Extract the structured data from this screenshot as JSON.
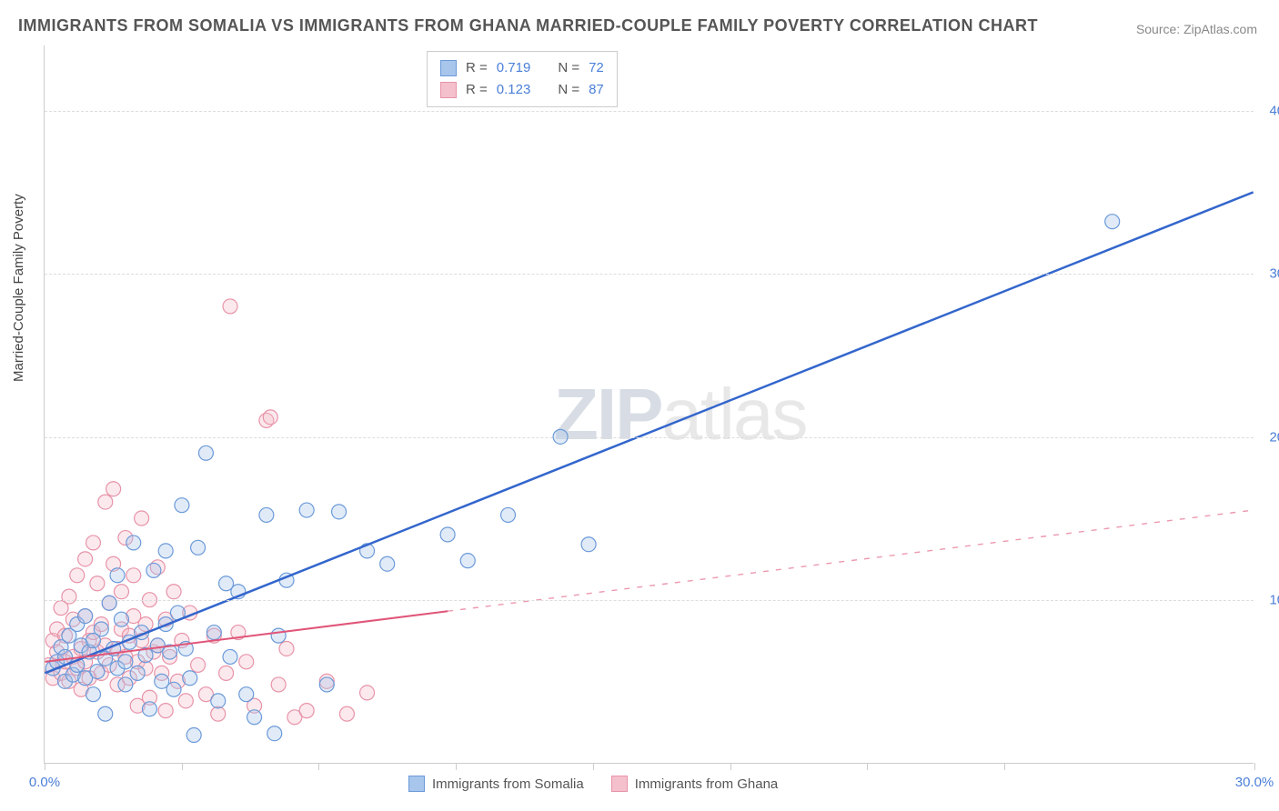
{
  "title": "IMMIGRANTS FROM SOMALIA VS IMMIGRANTS FROM GHANA MARRIED-COUPLE FAMILY POVERTY CORRELATION CHART",
  "source": "Source: ZipAtlas.com",
  "ylabel": "Married-Couple Family Poverty",
  "watermark_a": "ZIP",
  "watermark_b": "atlas",
  "chart": {
    "type": "scatter",
    "xlim": [
      0,
      30
    ],
    "ylim": [
      0,
      44
    ],
    "x_ticks": [
      0,
      3.4,
      6.8,
      10.2,
      13.6,
      17,
      20.4,
      23.8,
      30
    ],
    "x_tick_labels": {
      "0": "0.0%",
      "30": "30.0%"
    },
    "y_gridlines": [
      10,
      20,
      30,
      40
    ],
    "y_tick_labels": {
      "10": "10.0%",
      "20": "20.0%",
      "30": "30.0%",
      "40": "40.0%"
    },
    "background_color": "#ffffff",
    "grid_color": "#dddddd",
    "axis_color": "#cccccc",
    "tick_label_color": "#4a7fd8",
    "marker_radius": 8,
    "marker_stroke_width": 1.2,
    "marker_fill_opacity": 0.35,
    "series": [
      {
        "name": "Immigrants from Somalia",
        "color_fill": "#a8c5ec",
        "color_stroke": "#6b9ad9",
        "R": "0.719",
        "N": "72",
        "trend": {
          "p1": [
            0,
            5.5
          ],
          "p2": [
            30,
            35
          ],
          "solid_until_x": 30,
          "stroke": "#3366cc",
          "width": 2.5
        },
        "points": [
          [
            0.2,
            5.8
          ],
          [
            0.3,
            6.2
          ],
          [
            0.4,
            7.1
          ],
          [
            0.5,
            5.0
          ],
          [
            0.5,
            6.5
          ],
          [
            0.6,
            7.8
          ],
          [
            0.7,
            5.4
          ],
          [
            0.8,
            6.0
          ],
          [
            0.8,
            8.5
          ],
          [
            0.9,
            7.2
          ],
          [
            1.0,
            5.2
          ],
          [
            1.0,
            9.0
          ],
          [
            1.1,
            6.8
          ],
          [
            1.2,
            4.2
          ],
          [
            1.2,
            7.5
          ],
          [
            1.3,
            5.6
          ],
          [
            1.4,
            8.2
          ],
          [
            1.5,
            6.4
          ],
          [
            1.5,
            3.0
          ],
          [
            1.6,
            9.8
          ],
          [
            1.7,
            7.0
          ],
          [
            1.8,
            5.8
          ],
          [
            1.8,
            11.5
          ],
          [
            1.9,
            8.8
          ],
          [
            2.0,
            6.2
          ],
          [
            2.0,
            4.8
          ],
          [
            2.1,
            7.4
          ],
          [
            2.2,
            13.5
          ],
          [
            2.3,
            5.5
          ],
          [
            2.4,
            8.0
          ],
          [
            2.5,
            6.6
          ],
          [
            2.6,
            3.3
          ],
          [
            2.7,
            11.8
          ],
          [
            2.8,
            7.2
          ],
          [
            2.9,
            5.0
          ],
          [
            3.0,
            8.5
          ],
          [
            3.0,
            13.0
          ],
          [
            3.1,
            6.8
          ],
          [
            3.2,
            4.5
          ],
          [
            3.3,
            9.2
          ],
          [
            3.4,
            15.8
          ],
          [
            3.5,
            7.0
          ],
          [
            3.6,
            5.2
          ],
          [
            3.7,
            1.7
          ],
          [
            3.8,
            13.2
          ],
          [
            4.0,
            19.0
          ],
          [
            4.2,
            8.0
          ],
          [
            4.3,
            3.8
          ],
          [
            4.5,
            11.0
          ],
          [
            4.6,
            6.5
          ],
          [
            4.8,
            10.5
          ],
          [
            5.0,
            4.2
          ],
          [
            5.2,
            2.8
          ],
          [
            5.5,
            15.2
          ],
          [
            5.7,
            1.8
          ],
          [
            5.8,
            7.8
          ],
          [
            6.0,
            11.2
          ],
          [
            6.5,
            15.5
          ],
          [
            7.0,
            4.8
          ],
          [
            7.3,
            15.4
          ],
          [
            8.0,
            13.0
          ],
          [
            8.5,
            12.2
          ],
          [
            10.0,
            14.0
          ],
          [
            10.5,
            12.4
          ],
          [
            11.5,
            15.2
          ],
          [
            12.8,
            20.0
          ],
          [
            13.5,
            13.4
          ],
          [
            26.5,
            33.2
          ]
        ]
      },
      {
        "name": "Immigrants from Ghana",
        "color_fill": "#f4c0cc",
        "color_stroke": "#e893a8",
        "R": "0.123",
        "N": "87",
        "trend": {
          "p1": [
            0,
            6.2
          ],
          "p2": [
            30,
            15.5
          ],
          "solid_until_x": 10,
          "stroke": "#e05578",
          "width": 2
        },
        "points": [
          [
            0.1,
            6.0
          ],
          [
            0.2,
            5.2
          ],
          [
            0.2,
            7.5
          ],
          [
            0.3,
            6.8
          ],
          [
            0.3,
            8.2
          ],
          [
            0.4,
            5.5
          ],
          [
            0.4,
            9.5
          ],
          [
            0.5,
            6.2
          ],
          [
            0.5,
            7.8
          ],
          [
            0.6,
            5.0
          ],
          [
            0.6,
            10.2
          ],
          [
            0.7,
            6.5
          ],
          [
            0.7,
            8.8
          ],
          [
            0.8,
            5.8
          ],
          [
            0.8,
            11.5
          ],
          [
            0.9,
            7.0
          ],
          [
            0.9,
            4.5
          ],
          [
            1.0,
            6.2
          ],
          [
            1.0,
            9.0
          ],
          [
            1.0,
            12.5
          ],
          [
            1.1,
            7.5
          ],
          [
            1.1,
            5.2
          ],
          [
            1.2,
            8.0
          ],
          [
            1.2,
            13.5
          ],
          [
            1.3,
            6.8
          ],
          [
            1.3,
            11.0
          ],
          [
            1.4,
            5.5
          ],
          [
            1.4,
            8.5
          ],
          [
            1.5,
            7.2
          ],
          [
            1.5,
            16.0
          ],
          [
            1.6,
            6.0
          ],
          [
            1.6,
            9.8
          ],
          [
            1.7,
            12.2
          ],
          [
            1.7,
            16.8
          ],
          [
            1.8,
            7.0
          ],
          [
            1.8,
            4.8
          ],
          [
            1.9,
            8.2
          ],
          [
            1.9,
            10.5
          ],
          [
            2.0,
            6.5
          ],
          [
            2.0,
            13.8
          ],
          [
            2.1,
            5.2
          ],
          [
            2.1,
            7.8
          ],
          [
            2.2,
            9.0
          ],
          [
            2.2,
            11.5
          ],
          [
            2.3,
            6.2
          ],
          [
            2.3,
            3.5
          ],
          [
            2.4,
            7.5
          ],
          [
            2.4,
            15.0
          ],
          [
            2.5,
            5.8
          ],
          [
            2.5,
            8.5
          ],
          [
            2.6,
            10.0
          ],
          [
            2.6,
            4.0
          ],
          [
            2.7,
            6.8
          ],
          [
            2.8,
            7.2
          ],
          [
            2.8,
            12.0
          ],
          [
            2.9,
            5.5
          ],
          [
            3.0,
            8.8
          ],
          [
            3.0,
            3.2
          ],
          [
            3.1,
            6.5
          ],
          [
            3.2,
            10.5
          ],
          [
            3.3,
            5.0
          ],
          [
            3.4,
            7.5
          ],
          [
            3.5,
            3.8
          ],
          [
            3.6,
            9.2
          ],
          [
            3.8,
            6.0
          ],
          [
            4.0,
            4.2
          ],
          [
            4.2,
            7.8
          ],
          [
            4.3,
            3.0
          ],
          [
            4.5,
            5.5
          ],
          [
            4.6,
            28.0
          ],
          [
            4.8,
            8.0
          ],
          [
            5.0,
            6.2
          ],
          [
            5.2,
            3.5
          ],
          [
            5.5,
            21.0
          ],
          [
            5.6,
            21.2
          ],
          [
            5.8,
            4.8
          ],
          [
            6.0,
            7.0
          ],
          [
            6.2,
            2.8
          ],
          [
            6.5,
            3.2
          ],
          [
            7.0,
            5.0
          ],
          [
            7.5,
            3.0
          ],
          [
            8.0,
            4.3
          ]
        ]
      }
    ]
  },
  "stats_labels": {
    "R": "R =",
    "N": "N ="
  },
  "legend_series_labels": [
    "Immigrants from Somalia",
    "Immigrants from Ghana"
  ]
}
